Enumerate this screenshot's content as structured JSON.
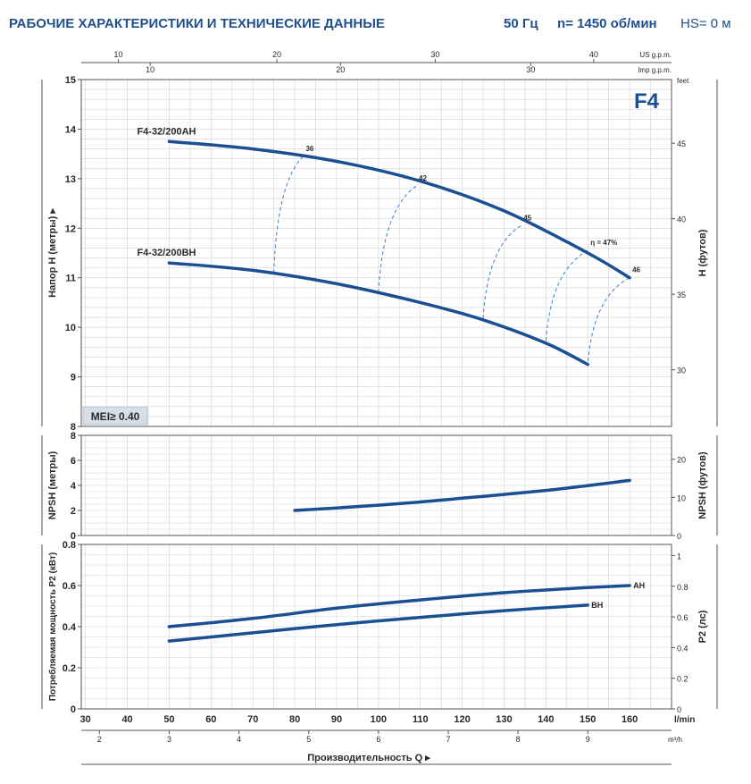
{
  "header": {
    "title": "РАБОЧИЕ ХАРАКТЕРИСТИКИ И ТЕХНИЧЕСКИЕ ДАННЫЕ",
    "freq": "50 Гц",
    "speed": "n= 1450 об/мин",
    "hs": "HS= 0 м"
  },
  "chart_data": {
    "type": "line",
    "x_lpm": {
      "ticks": [
        30,
        40,
        50,
        60,
        70,
        80,
        90,
        100,
        110,
        120,
        130,
        140,
        150,
        160
      ],
      "unit": "l/min",
      "range": [
        29,
        170
      ]
    },
    "x_m3h": {
      "ticks": [
        2,
        3,
        4,
        5,
        6,
        7,
        8,
        9
      ],
      "unit": "m³/h"
    },
    "x_usgpm": {
      "ticks": [
        10,
        20,
        30,
        40
      ],
      "unit": "US g.p.m."
    },
    "x_impgpm": {
      "ticks": [
        10,
        20,
        30
      ],
      "unit": "Imp g.p.m."
    },
    "xlabel": "Производительность Q",
    "model_badge": "F4",
    "mei_label": "MEI≥ 0.40",
    "head": {
      "ylabel": "Напор H (метры)",
      "ylabel_right": "H (футов)",
      "ylim": [
        8,
        15
      ],
      "yticks": [
        8,
        9,
        10,
        11,
        12,
        13,
        14,
        15
      ],
      "feet_ticks": [
        30,
        35,
        40,
        45
      ],
      "feet_unit": "feet",
      "series": [
        {
          "name": "F4-32/200AH",
          "x": [
            50,
            70,
            90,
            110,
            130,
            150,
            160
          ],
          "y": [
            13.75,
            13.6,
            13.35,
            12.95,
            12.35,
            11.5,
            11.0
          ]
        },
        {
          "name": "F4-32/200BH",
          "x": [
            50,
            70,
            90,
            110,
            125,
            140,
            150
          ],
          "y": [
            11.3,
            11.15,
            10.88,
            10.5,
            10.15,
            9.68,
            9.25
          ]
        }
      ],
      "efficiency": [
        {
          "label": "36",
          "top": [
            82,
            13.45
          ],
          "bottom": [
            75,
            11.12
          ]
        },
        {
          "label": "42",
          "top": [
            109,
            12.85
          ],
          "bottom": [
            100,
            10.72
          ]
        },
        {
          "label": "45",
          "top": [
            134,
            12.05
          ],
          "bottom": [
            125,
            10.18
          ]
        },
        {
          "label": "η = 47%",
          "top": [
            150,
            11.55
          ],
          "bottom": [
            140,
            9.72
          ]
        },
        {
          "label": "46",
          "top": [
            160,
            11.0
          ],
          "bottom": [
            150,
            9.25
          ]
        }
      ]
    },
    "npsh": {
      "ylabel": "NPSH (метры)",
      "ylabel_right": "NPSH (футов)",
      "ylim": [
        0,
        8
      ],
      "yticks": [
        0,
        2,
        4,
        6,
        8
      ],
      "feet_ticks": [
        0,
        10,
        20
      ],
      "series": [
        {
          "name": "NPSH",
          "x": [
            80,
            90,
            100,
            110,
            120,
            130,
            140,
            150,
            160
          ],
          "y": [
            2.0,
            2.2,
            2.42,
            2.68,
            2.98,
            3.28,
            3.6,
            3.98,
            4.4
          ]
        }
      ]
    },
    "power": {
      "ylabel": "Потребляемая мощность P2 (кВт)",
      "ylabel_right": "P2 (лс)",
      "ylim": [
        0,
        0.8
      ],
      "yticks": [
        0,
        0.2,
        0.4,
        0.6,
        0.8
      ],
      "hp_ticks": [
        0,
        0.2,
        0.4,
        0.6,
        0.8,
        1
      ],
      "series": [
        {
          "name": "AH",
          "x": [
            50,
            70,
            90,
            110,
            130,
            150,
            160
          ],
          "y": [
            0.4,
            0.44,
            0.49,
            0.53,
            0.565,
            0.59,
            0.6
          ]
        },
        {
          "name": "BH",
          "x": [
            50,
            70,
            90,
            110,
            130,
            150
          ],
          "y": [
            0.33,
            0.37,
            0.41,
            0.445,
            0.478,
            0.505
          ]
        }
      ]
    }
  }
}
